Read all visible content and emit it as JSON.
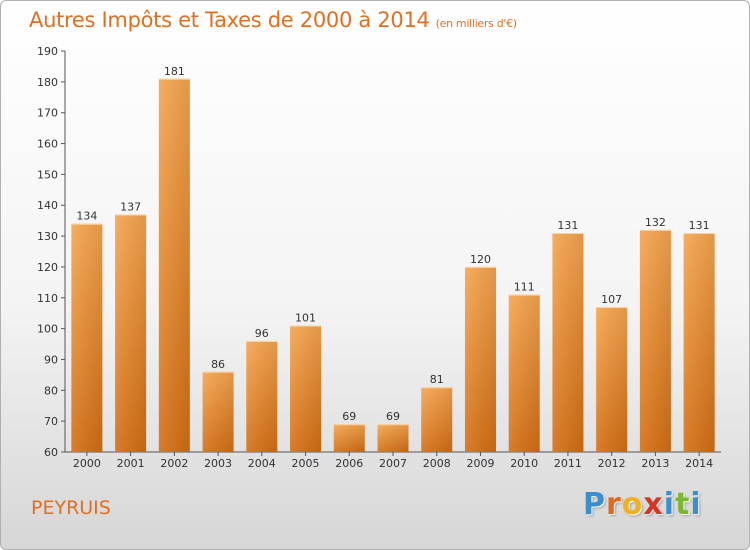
{
  "header": {
    "title": "Autres Impôts et Taxes de 2000 à 2014",
    "unit": "(en milliers d'€)"
  },
  "footer": {
    "commune": "PEYRUIS",
    "logo_letters": [
      "P",
      "r",
      "o",
      "x",
      "i",
      "t",
      "i"
    ],
    "logo_colors": [
      "#3a8fd0",
      "#e06a1a",
      "#f0b020",
      "#d8331f",
      "#3a8fd0",
      "#7cb82e",
      "#3a8fd0"
    ]
  },
  "colors": {
    "accent": "#e07020",
    "bar_top": "#f6a54e",
    "bar_bottom": "#d46e12"
  },
  "chart_data": {
    "type": "bar",
    "categories": [
      "2000",
      "2001",
      "2002",
      "2003",
      "2004",
      "2005",
      "2006",
      "2007",
      "2008",
      "2009",
      "2010",
      "2011",
      "2012",
      "2013",
      "2014"
    ],
    "values": [
      134,
      137,
      181,
      86,
      96,
      101,
      69,
      69,
      81,
      120,
      111,
      131,
      107,
      132,
      131
    ],
    "ylim": [
      60,
      190
    ],
    "yticks": [
      60,
      70,
      80,
      90,
      100,
      110,
      120,
      130,
      140,
      150,
      160,
      170,
      180,
      190
    ],
    "grid": false,
    "data_labels": true
  }
}
